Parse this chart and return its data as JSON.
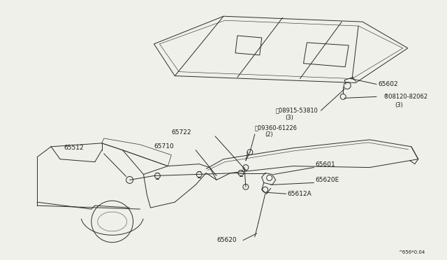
{
  "bg_color": "#f0f0eb",
  "line_color": "#2a2a2a",
  "text_color": "#1a1a1a",
  "fig_width": 6.4,
  "fig_height": 3.72,
  "watermark": "^656*0.04"
}
